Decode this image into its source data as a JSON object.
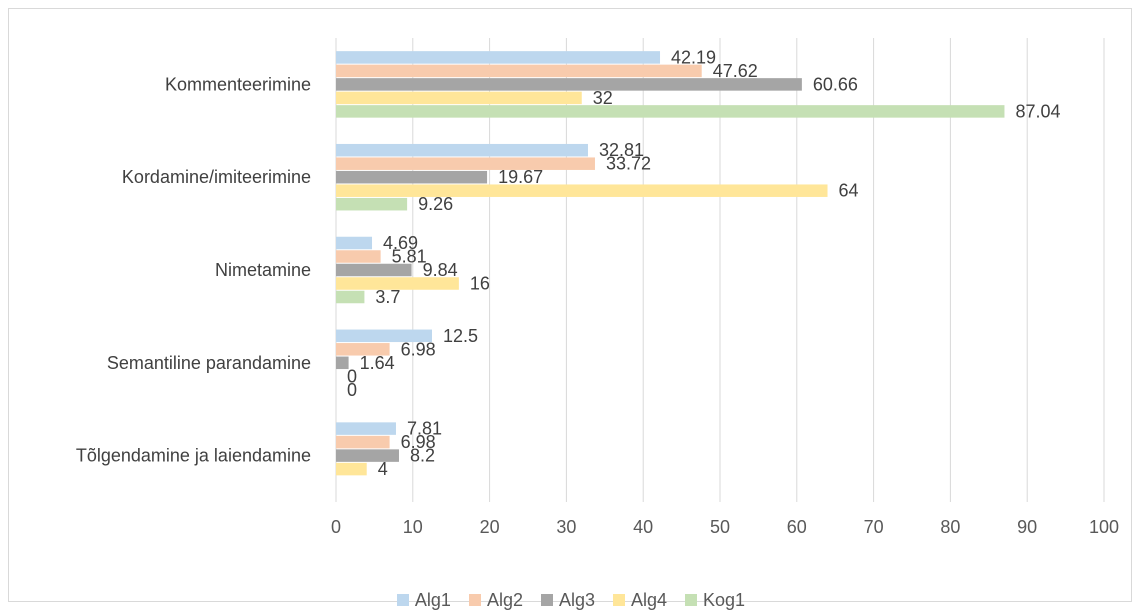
{
  "chart_data": {
    "type": "bar",
    "orientation": "horizontal",
    "categories": [
      "Kommenteerimine",
      "Kordamine/imiteerimine",
      "Nimetamine",
      "Semantiline parandamine",
      "Tõlgendamine ja laiendamine"
    ],
    "series": [
      {
        "name": "Alg1",
        "color": "#bdd7ee",
        "values": [
          42.19,
          32.81,
          4.69,
          12.5,
          7.81
        ],
        "labels": [
          "42.19",
          "32.81",
          "4.69",
          "12.5",
          "7.81"
        ]
      },
      {
        "name": "Alg2",
        "color": "#f8cbad",
        "values": [
          47.62,
          33.72,
          5.81,
          6.98,
          6.98
        ],
        "labels": [
          "47.62",
          "33.72",
          "5.81",
          "6.98",
          "6.98"
        ]
      },
      {
        "name": "Alg3",
        "color": "#a5a5a5",
        "values": [
          60.66,
          19.67,
          9.84,
          1.64,
          8.2
        ],
        "labels": [
          "60.66",
          "19.67",
          "9.84",
          "1.64",
          "8.2"
        ]
      },
      {
        "name": "Alg4",
        "color": "#ffe699",
        "values": [
          32,
          64,
          16,
          0,
          4
        ],
        "labels": [
          "32",
          "64",
          "16",
          "0",
          "4"
        ]
      },
      {
        "name": "Kog1",
        "color": "#c5e0b4",
        "values": [
          87.04,
          9.26,
          3.7,
          0,
          0
        ],
        "labels": [
          "87.04",
          "9.26",
          "3.7",
          "0",
          ""
        ]
      }
    ],
    "xlim": [
      0,
      100
    ],
    "xticks": [
      "0",
      "10",
      "20",
      "30",
      "40",
      "50",
      "60",
      "70",
      "80",
      "90",
      "100"
    ],
    "grid": true,
    "legend_position": "bottom"
  }
}
